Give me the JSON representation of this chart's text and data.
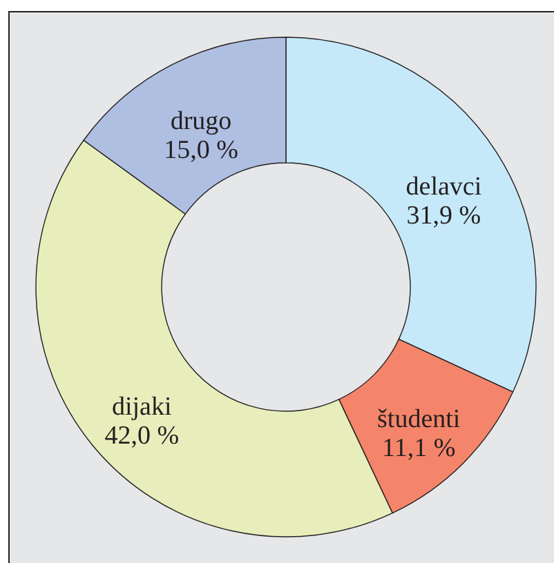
{
  "chart_data": {
    "type": "donut",
    "categories": [
      "delavci",
      "študenti",
      "dijaki",
      "drugo"
    ],
    "values": [
      31.9,
      11.1,
      42.0,
      15.0
    ],
    "colors": [
      "#c6e9f9",
      "#f4856a",
      "#e8eebb",
      "#afbfe2"
    ],
    "value_labels": [
      "31,9 %",
      "11,1 %",
      "42,0 %",
      "15,0 %"
    ]
  }
}
